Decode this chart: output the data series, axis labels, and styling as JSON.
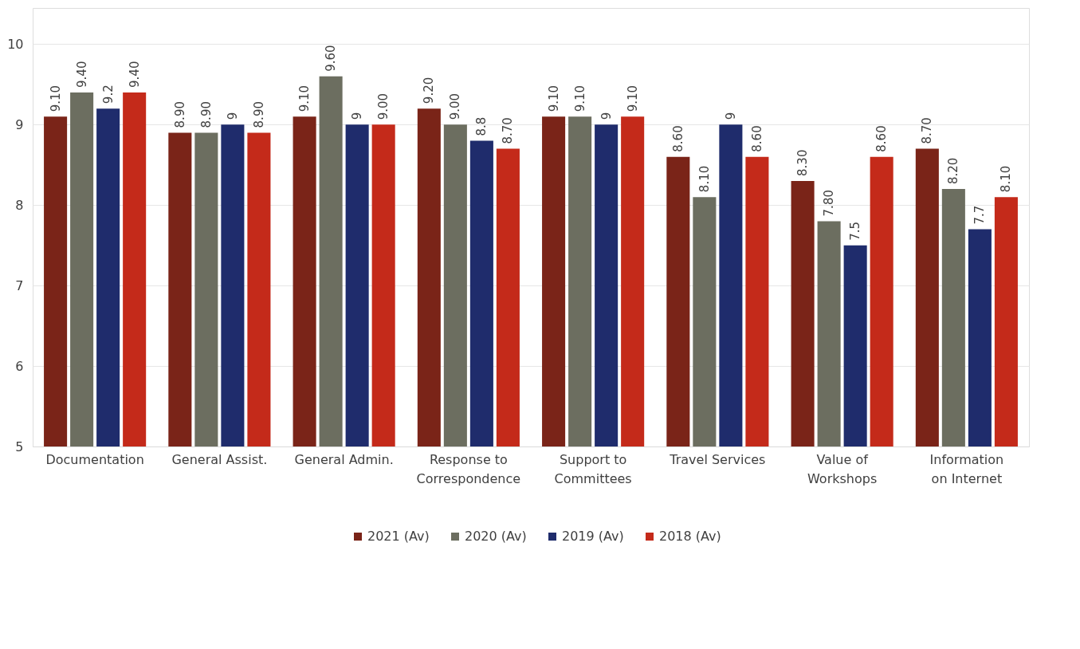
{
  "chart_data": {
    "type": "bar",
    "categories": [
      "Documentation",
      "General Assist.",
      "General Admin.",
      "Response to Correspondence",
      "Support to Committees",
      "Travel Services",
      "Value of Workshops",
      "Information on Internet"
    ],
    "series": [
      {
        "name": "2021 (Av)",
        "color": "#7a2418",
        "values": [
          9.1,
          8.9,
          9.1,
          9.2,
          9.1,
          8.6,
          8.3,
          8.7
        ],
        "value_labels": [
          "9.10",
          "8.90",
          "9.10",
          "9.20",
          "9.10",
          "8.60",
          "8.30",
          "8.70"
        ]
      },
      {
        "name": "2020 (Av)",
        "color": "#6c6e60",
        "values": [
          9.4,
          8.9,
          9.6,
          9.0,
          9.1,
          8.1,
          7.8,
          8.2
        ],
        "value_labels": [
          "9.40",
          "8.90",
          "9.60",
          "9.00",
          "9.10",
          "8.10",
          "7.80",
          "8.20"
        ]
      },
      {
        "name": "2019 (Av)",
        "color": "#1f2c6c",
        "values": [
          9.2,
          9,
          9,
          8.8,
          9,
          9,
          7.5,
          7.7
        ],
        "value_labels": [
          "9.2",
          "9",
          "9",
          "8.8",
          "9",
          "9",
          "7.5",
          "7.7"
        ]
      },
      {
        "name": "2018 (Av)",
        "color": "#c42a1a",
        "values": [
          9.4,
          8.9,
          9.0,
          8.7,
          9.1,
          8.6,
          8.6,
          8.1
        ],
        "value_labels": [
          "9.40",
          "8.90",
          "9.00",
          "8.70",
          "9.10",
          "8.60",
          "8.60",
          "8.10"
        ]
      }
    ],
    "ylim": [
      5,
      10.45
    ],
    "yticks": [
      5,
      6,
      7,
      8,
      9,
      10
    ],
    "grid": "y",
    "legend": "bottom"
  }
}
